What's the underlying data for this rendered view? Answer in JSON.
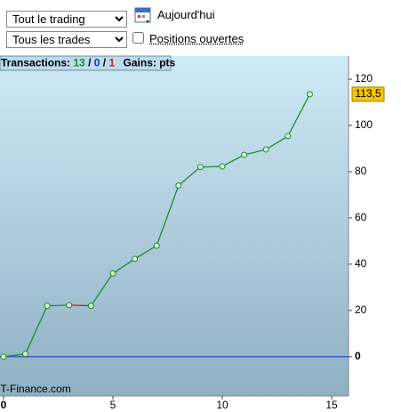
{
  "controls": {
    "period": "Tout le trading",
    "filter": "Tous les trades",
    "today": "Aujourd'hui",
    "open_positions": "Positions ouvertes"
  },
  "stats": {
    "label": "Transactions:",
    "wins": "13",
    "separator": "/",
    "neutral": "0",
    "losses": "1",
    "gains_label": "Gains:",
    "gains_unit": "pts"
  },
  "watermark": "IT-Finance.com",
  "chart_data": {
    "type": "line",
    "x": [
      0,
      1,
      2,
      3,
      4,
      5,
      6,
      7,
      8,
      9,
      10,
      11,
      12,
      13,
      14
    ],
    "series": [
      {
        "name": "Gains",
        "color": "#1e8a2e",
        "values": [
          0,
          1.2,
          22,
          22.3,
          22,
          36,
          42.3,
          48,
          74,
          82,
          82.3,
          87.3,
          89.6,
          95.4,
          113.5
        ],
        "value_labels": [
          null,
          null,
          null,
          null,
          null,
          null,
          null,
          null,
          null,
          null,
          null,
          null,
          null,
          null,
          "113,5"
        ],
        "segment_colors": [
          "#1e8a2e",
          "#1e8a2e",
          "#1e8a2e",
          "#c0202a",
          "#1e8a2e",
          "#1e8a2e",
          "#1e8a2e",
          "#1e8a2e",
          "#1e8a2e",
          "#1e8a2e",
          "#1e8a2e",
          "#1e8a2e",
          "#1e8a2e",
          "#1e8a2e"
        ]
      }
    ],
    "xlim": [
      -0.16,
      15.77
    ],
    "xticks": [
      0,
      5,
      10,
      15
    ],
    "ylim": [
      -17,
      130
    ],
    "yticks": [
      0,
      20,
      40,
      60,
      80,
      100,
      120
    ],
    "baseline_color": "#1a2fd0",
    "grid": false
  }
}
